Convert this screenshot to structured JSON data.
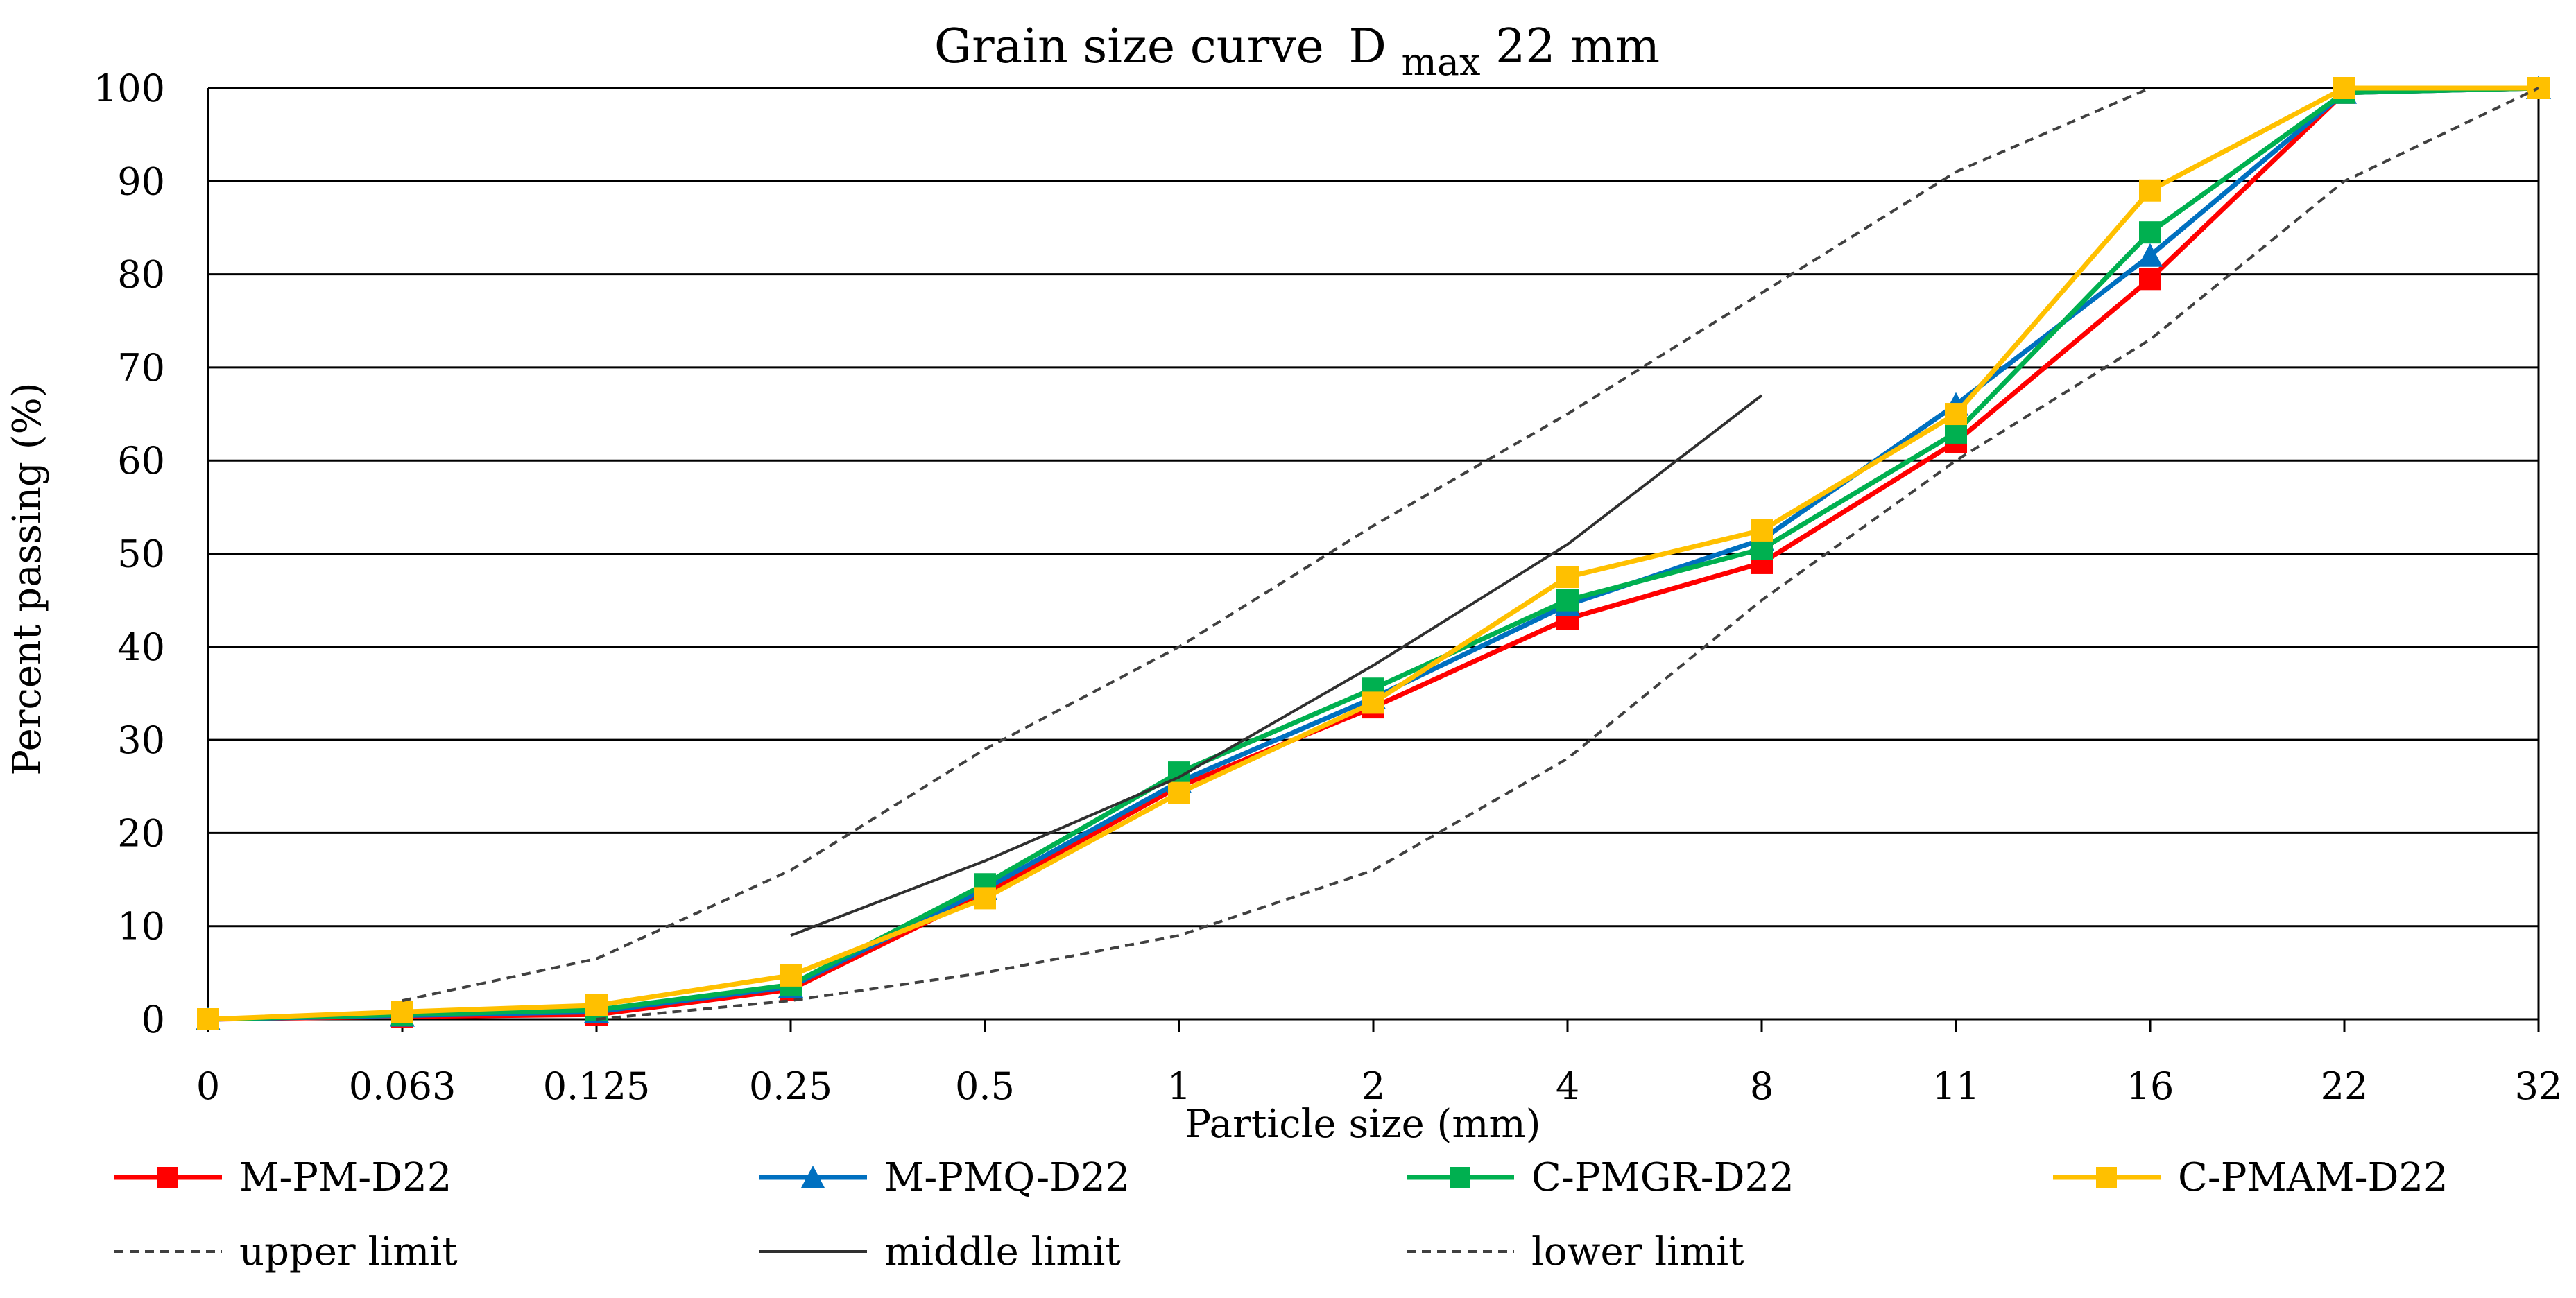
{
  "chart_data": {
    "type": "line",
    "title": "Grain size curve",
    "title_subscript": {
      "base": "D",
      "sub": "max",
      "rest": " 22 mm"
    },
    "xlabel": "Particle size (mm)",
    "ylabel": "Percent passing (%)",
    "categories": [
      "0",
      "0.063",
      "0.125",
      "0.25",
      "0.5",
      "1",
      "2",
      "4",
      "8",
      "11",
      "16",
      "22",
      "32"
    ],
    "ylim": [
      0,
      100
    ],
    "yticks": [
      0,
      10,
      20,
      30,
      40,
      50,
      60,
      70,
      80,
      90,
      100
    ],
    "grid": "horizontal",
    "legend_position": "bottom",
    "series": [
      {
        "name": "M-PM-D22",
        "color": "#ff0000",
        "marker": "square",
        "style": "solid",
        "values": [
          0,
          0.3,
          0.5,
          3.2,
          13.5,
          25,
          33.5,
          43,
          49,
          62,
          79.5,
          99.5,
          100
        ]
      },
      {
        "name": "M-PMQ-D22",
        "color": "#0070c0",
        "marker": "triangle",
        "style": "solid",
        "values": [
          0,
          0.4,
          0.8,
          3.5,
          14,
          25.5,
          34.5,
          44.5,
          51.5,
          66,
          82,
          99.5,
          100
        ]
      },
      {
        "name": "C-PMGR-D22",
        "color": "#00b050",
        "marker": "square",
        "style": "solid",
        "values": [
          0,
          0.5,
          1,
          3.7,
          14.5,
          26.5,
          35.5,
          45,
          50.5,
          63,
          84.5,
          99.5,
          100
        ]
      },
      {
        "name": "C-PMAM-D22",
        "color": "#ffc000",
        "marker": "square",
        "style": "solid",
        "values": [
          0,
          0.8,
          1.5,
          4.7,
          13,
          24.3,
          34,
          47.5,
          52.5,
          65,
          89,
          100,
          100
        ]
      },
      {
        "name": "upper limit",
        "color": "#404040",
        "marker": "none",
        "style": "dashed",
        "values": [
          null,
          2,
          6.5,
          16,
          29,
          40,
          53,
          65,
          78,
          91,
          100,
          null,
          null
        ]
      },
      {
        "name": "middle limit",
        "color": "#303030",
        "marker": "none",
        "style": "solid",
        "values": [
          null,
          null,
          null,
          9,
          17,
          26,
          38,
          51,
          67,
          null,
          null,
          null,
          null
        ]
      },
      {
        "name": "lower limit",
        "color": "#404040",
        "marker": "none",
        "style": "dashed",
        "values": [
          null,
          null,
          0,
          2,
          5,
          9,
          16,
          28,
          45,
          60,
          73,
          90,
          100
        ]
      }
    ]
  }
}
